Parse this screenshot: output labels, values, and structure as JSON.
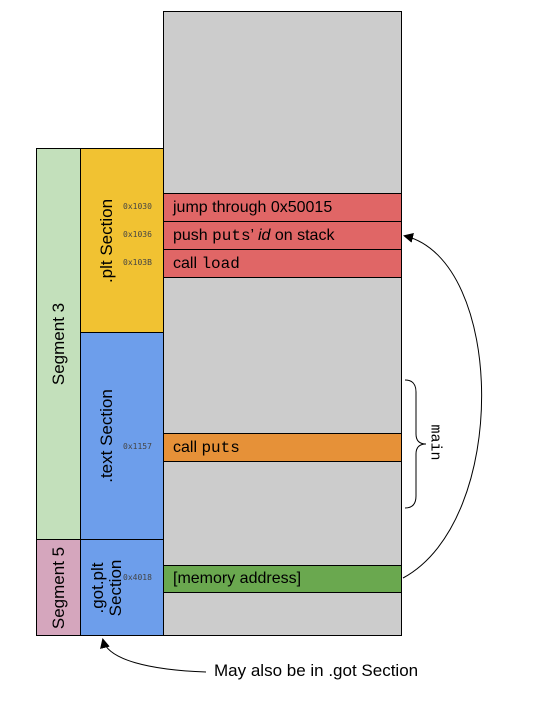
{
  "colors": {
    "memory": "#cccccc",
    "segment3": "#c3e0bb",
    "segment5": "#d5a6bd",
    "plt_section": "#f1c232",
    "text_section": "#6d9eeb",
    "gotplt_section": "#6d9eeb",
    "plt_rows": "#e06666",
    "text_row": "#e69138",
    "got_row": "#6aa84f"
  },
  "segments": {
    "segment3": "Segment 3",
    "segment5": "Segment 5"
  },
  "sections": {
    "plt": ".plt Section",
    "text": ".text Section",
    "gotplt_line1": ".got.plt",
    "gotplt_line2": "Section"
  },
  "addresses": {
    "a1030": "0x1030",
    "a1036": "0x1036",
    "a103b": "0x103B",
    "a1157": "0x1157",
    "a4018": "0x4018"
  },
  "rows": {
    "plt_jump": "jump through 0x50015",
    "plt_push_prefix": "push ",
    "plt_push_code": "puts",
    "plt_push_quote": "’ ",
    "plt_push_id": "id",
    "plt_push_suffix": " on stack",
    "plt_call_prefix": "call ",
    "plt_call_code": "load",
    "text_call_prefix": "call ",
    "text_call_code": "puts",
    "got_entry": "[memory address]"
  },
  "labels": {
    "main": "main",
    "caption": "May also be in .got Section"
  }
}
